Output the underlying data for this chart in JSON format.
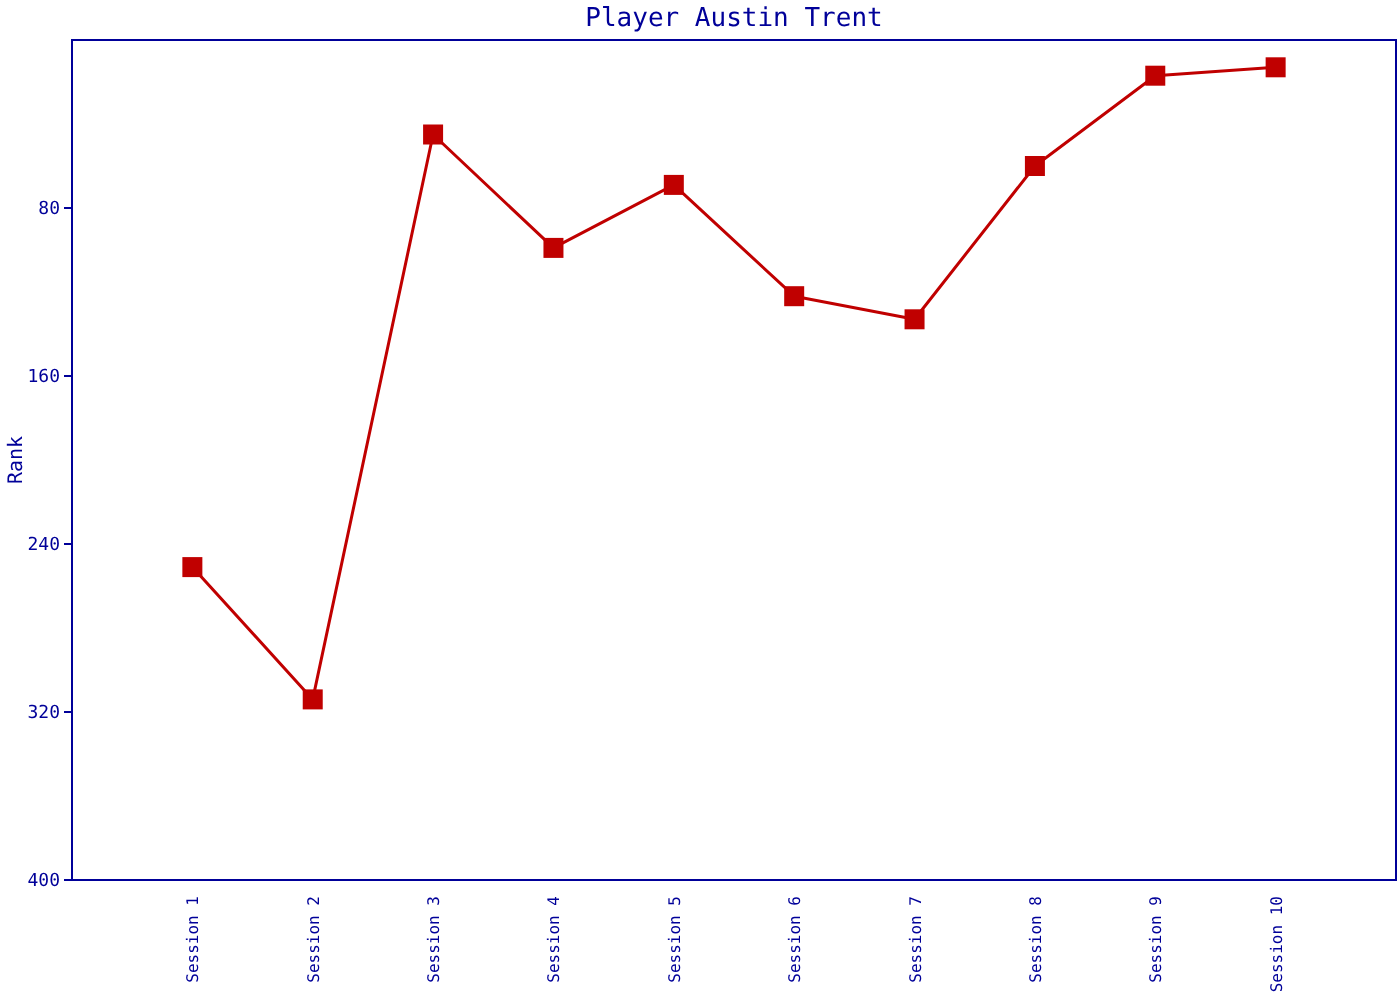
{
  "chart_data": {
    "type": "line",
    "title": "Player Austin Trent",
    "ylabel": "Rank",
    "categories": [
      "Session 1",
      "Session 2",
      "Session 3",
      "Session 4",
      "Session 5",
      "Session 6",
      "Session 7",
      "Session 8",
      "Session 9",
      "Session 10"
    ],
    "series": [
      {
        "color": "#c00000",
        "values": [
          251,
          314,
          45,
          99,
          69,
          122,
          133,
          60,
          17,
          13
        ]
      }
    ],
    "ylim": [
      400,
      0
    ],
    "yticks": [
      80,
      160,
      240,
      320,
      400
    ],
    "marker": "square"
  }
}
